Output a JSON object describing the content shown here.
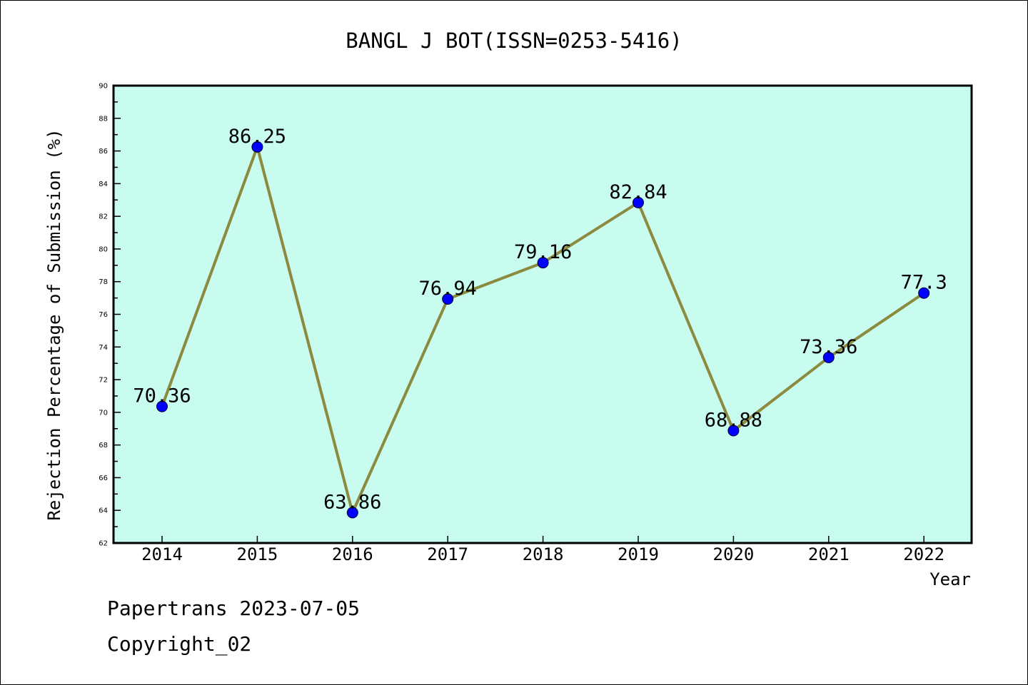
{
  "chart_data": {
    "type": "line",
    "title": "BANGL J BOT(ISSN=0253-5416)",
    "xlabel": "Year",
    "ylabel": "Rejection Percentage of Submission (%)",
    "categories": [
      "2014",
      "2015",
      "2016",
      "2017",
      "2018",
      "2019",
      "2020",
      "2021",
      "2022"
    ],
    "values": [
      70.36,
      86.25,
      63.86,
      76.94,
      79.16,
      82.84,
      68.88,
      73.36,
      77.3
    ],
    "data_labels": [
      "70.36",
      "86.25",
      "63.86",
      "76.94",
      "79.16",
      "82.84",
      "68.88",
      "73.36",
      "77.3"
    ],
    "ylim": [
      62,
      90
    ],
    "yticks": [
      "62",
      "64",
      "66",
      "68",
      "70",
      "72",
      "74",
      "76",
      "78",
      "80",
      "82",
      "84",
      "86",
      "88",
      "90"
    ],
    "colors": {
      "plot_background": "#c8fcee",
      "line": "#8b8a3e",
      "marker": "#0000ff"
    },
    "grid": false,
    "legend": "none"
  },
  "footer": {
    "line1": "Papertrans 2023-07-05",
    "line2": "Copyright_02"
  }
}
